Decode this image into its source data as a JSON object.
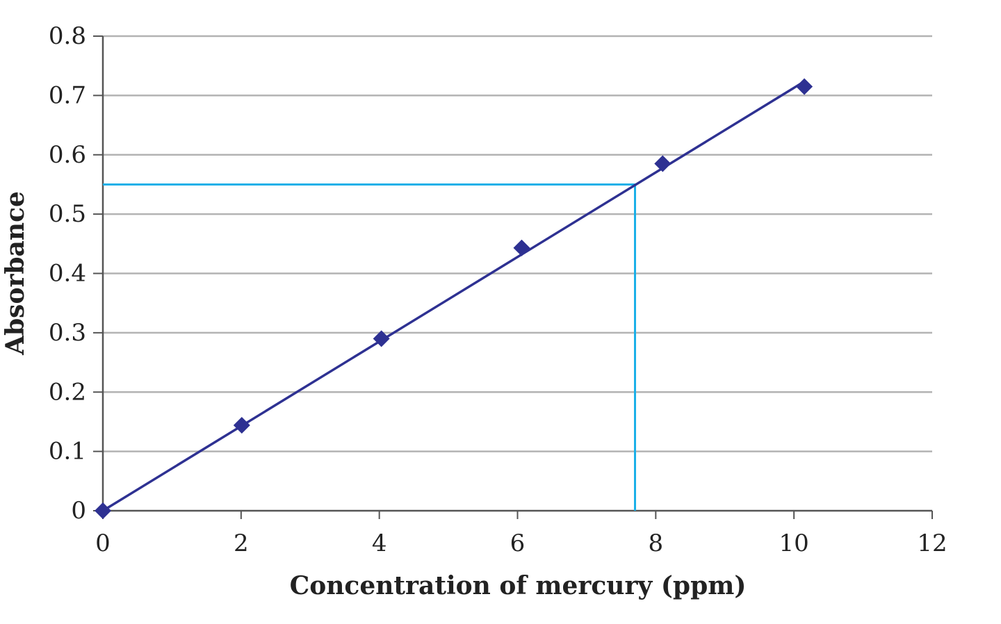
{
  "chart_data": {
    "type": "scatter",
    "title": "",
    "xlabel": "Concentration of mercury (ppm)",
    "ylabel": "Absorbance",
    "xlim": [
      0,
      12
    ],
    "ylim": [
      0,
      0.8
    ],
    "xticks": [
      "0",
      "2",
      "4",
      "6",
      "8",
      "10",
      "12"
    ],
    "yticks": [
      "0",
      "0.1",
      "0.2",
      "0.3",
      "0.4",
      "0.5",
      "0.6",
      "0.7",
      "0.8"
    ],
    "grid": "horizontal",
    "legend": "none",
    "series": [
      {
        "marker": "diamond",
        "color": "#2e3192",
        "points": [
          {
            "x": 0,
            "y": 0
          },
          {
            "x": 2.01,
            "y": 0.144
          },
          {
            "x": 4.03,
            "y": 0.29
          },
          {
            "x": 6.06,
            "y": 0.443
          },
          {
            "x": 8.1,
            "y": 0.585
          },
          {
            "x": 10.15,
            "y": 0.715
          }
        ]
      }
    ],
    "trendline": {
      "x": [
        0,
        10.1
      ],
      "y": [
        0,
        0.72
      ],
      "color": "#2e3192"
    },
    "annotation": {
      "y": 0.55,
      "x": 7.7,
      "color": "#1ab0e8"
    },
    "colors": {
      "grid": "#b3b3b3",
      "axis": "#555555"
    }
  }
}
